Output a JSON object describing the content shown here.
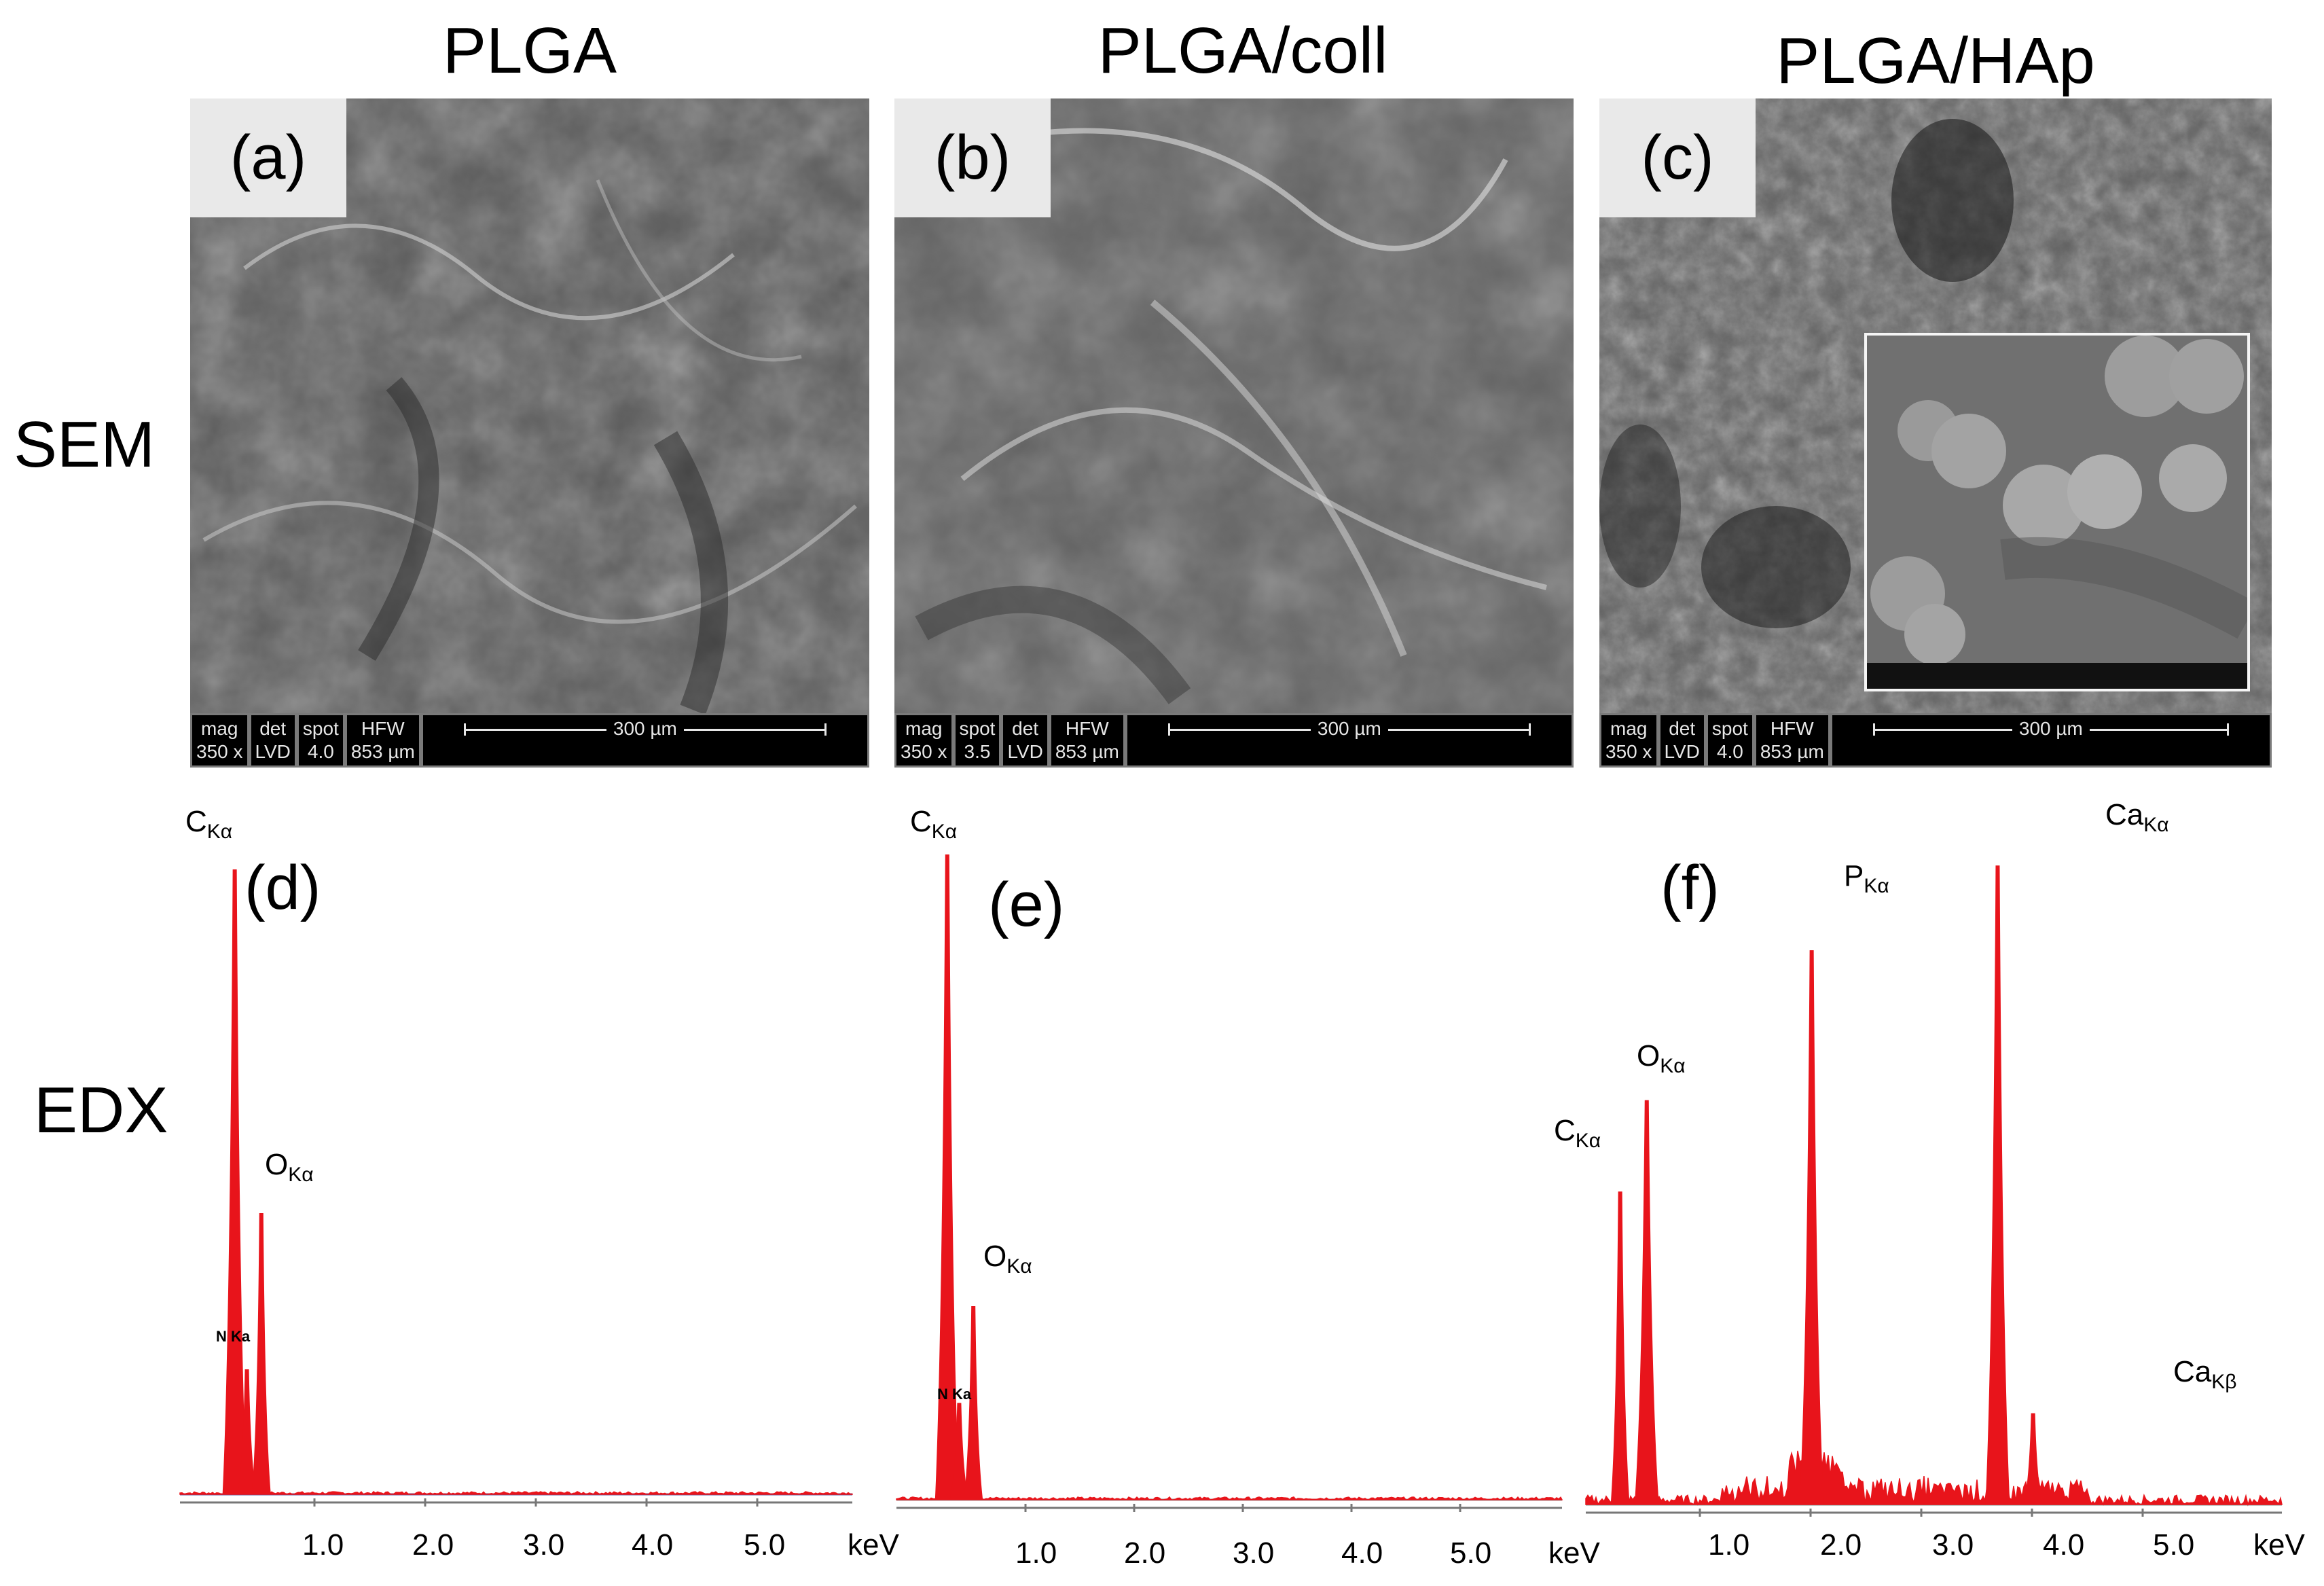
{
  "columns": [
    {
      "title": "PLGA",
      "sem_tag": "(a)",
      "edx_tag": "(d)",
      "databar": {
        "c1": [
          "mag",
          "350 x"
        ],
        "c2": [
          "det",
          "LVD"
        ],
        "c3": [
          "spot",
          "4.0"
        ],
        "c4": [
          "HFW",
          "853 µm"
        ],
        "scale": "300 µm"
      }
    },
    {
      "title": "PLGA/coll",
      "sem_tag": "(b)",
      "edx_tag": "(e)",
      "databar": {
        "c1": [
          "mag",
          "350 x"
        ],
        "c2": [
          "spot",
          "3.5"
        ],
        "c3": [
          "det",
          "LVD"
        ],
        "c4": [
          "HFW",
          "853 µm"
        ],
        "scale": "300 µm"
      }
    },
    {
      "title": "PLGA/HAp",
      "sem_tag": "(c)",
      "edx_tag": "(f)",
      "databar": {
        "c1": [
          "mag",
          "350 x"
        ],
        "c2": [
          "det",
          "LVD"
        ],
        "c3": [
          "spot",
          "4.0"
        ],
        "c4": [
          "HFW",
          "853 µm"
        ],
        "scale": "300 µm"
      }
    }
  ],
  "rows": {
    "sem": "SEM",
    "edx": "EDX"
  },
  "peak_labels": {
    "d": {
      "c": [
        "C",
        "Kα"
      ],
      "o": [
        "O",
        "Kα"
      ],
      "n": "N Ka"
    },
    "e": {
      "c": [
        "C",
        "Kα"
      ],
      "o": [
        "O",
        "Kα"
      ],
      "n": "N Ka"
    },
    "f": {
      "c": [
        "C",
        "Kα"
      ],
      "o": [
        "O",
        "Kα"
      ],
      "p": [
        "P",
        "Kα"
      ],
      "ca": [
        "Ca",
        "Kα"
      ],
      "cab": [
        "Ca",
        "Kβ"
      ]
    }
  },
  "x_ticks": [
    "1.0",
    "2.0",
    "3.0",
    "4.0",
    "5.0"
  ],
  "x_unit": "keV",
  "colors": {
    "spectrum": "#e8141b",
    "sem_gray": "#5b5b5b",
    "baseline_d": "#5a5aa0"
  },
  "chart_data": [
    {
      "type": "area",
      "panel": "(d)",
      "xlabel": "keV",
      "xlim": [
        0,
        5.5
      ],
      "x_ticks": [
        1.0,
        2.0,
        3.0,
        4.0,
        5.0
      ],
      "peaks": [
        {
          "label": "C Kα",
          "x": 0.28,
          "y": 100
        },
        {
          "label": "N Ka",
          "x": 0.39,
          "y": 20
        },
        {
          "label": "O Kα",
          "x": 0.52,
          "y": 45
        }
      ],
      "ylim": [
        0,
        100
      ]
    },
    {
      "type": "area",
      "panel": "(e)",
      "xlabel": "keV",
      "xlim": [
        0,
        5.5
      ],
      "x_ticks": [
        1.0,
        2.0,
        3.0,
        4.0,
        5.0
      ],
      "peaks": [
        {
          "label": "C Kα",
          "x": 0.28,
          "y": 100
        },
        {
          "label": "N Ka",
          "x": 0.39,
          "y": 15
        },
        {
          "label": "O Kα",
          "x": 0.52,
          "y": 30
        }
      ],
      "ylim": [
        0,
        100
      ]
    },
    {
      "type": "area",
      "panel": "(f)",
      "xlabel": "keV",
      "xlim": [
        0,
        5.5
      ],
      "x_ticks": [
        1.0,
        2.0,
        3.0,
        4.0,
        5.0
      ],
      "peaks": [
        {
          "label": "C Kα",
          "x": 0.28,
          "y": 48
        },
        {
          "label": "O Kα",
          "x": 0.52,
          "y": 62
        },
        {
          "label": "P Kα",
          "x": 2.01,
          "y": 85
        },
        {
          "label": "Ca Kα",
          "x": 3.69,
          "y": 98
        },
        {
          "label": "Ca Kβ",
          "x": 4.01,
          "y": 14
        }
      ],
      "ylim": [
        0,
        100
      ]
    }
  ]
}
